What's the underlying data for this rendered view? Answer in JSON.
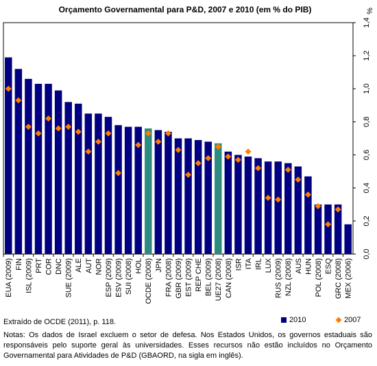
{
  "chart_data": {
    "type": "bar",
    "title": "Orçamento Governamental para P&D, 2007 e 2010 (em % do PIB)",
    "y_label": "%",
    "categories": [
      "EUA (2009)",
      "FIN",
      "ISL (2009)",
      "PRT",
      "COR",
      "DNC",
      "SUE (2009)",
      "ALE",
      "AUT",
      "NOR",
      "ESP (2009)",
      "ESV (2009)",
      "SUI (2008)",
      "HOL",
      "OCDE (2008)",
      "JPN",
      "FRA (2008)",
      "GBR (2009)",
      "EST (2009)",
      "REP CHE",
      "BEL (2009)",
      "UE27 (2008)",
      "CAN (2008)",
      "ISR",
      "ITA",
      "IRL",
      "LUX",
      "RUS (2009)",
      "NZL (2008)",
      "AUS",
      "HUN",
      "POL (2008)",
      "ESQ",
      "GRC (2008)",
      "MEX (2006)"
    ],
    "series": [
      {
        "name": "2010",
        "type": "bar",
        "color": "#000080",
        "colors": [
          "#000080",
          "#000080",
          "#000080",
          "#000080",
          "#000080",
          "#000080",
          "#000080",
          "#000080",
          "#000080",
          "#000080",
          "#000080",
          "#000080",
          "#000080",
          "#000080",
          "#2e8b80",
          "#000080",
          "#000080",
          "#000080",
          "#000080",
          "#000080",
          "#000080",
          "#2e8b80",
          "#000080",
          "#000080",
          "#000080",
          "#000080",
          "#000080",
          "#000080",
          "#000080",
          "#000080",
          "#000080",
          "#000080",
          "#000080",
          "#000080",
          "#000080"
        ],
        "values": [
          1.19,
          1.12,
          1.06,
          1.03,
          1.03,
          0.99,
          0.92,
          0.91,
          0.85,
          0.85,
          0.83,
          0.78,
          0.77,
          0.77,
          0.76,
          0.75,
          0.74,
          0.7,
          0.7,
          0.69,
          0.68,
          0.67,
          0.62,
          0.6,
          0.59,
          0.58,
          0.56,
          0.56,
          0.55,
          0.53,
          0.47,
          0.3,
          0.3,
          0.3,
          0.18
        ]
      },
      {
        "name": "2007",
        "type": "diamond",
        "color": "#ff7f00",
        "values": [
          1.0,
          0.93,
          0.77,
          0.73,
          0.82,
          0.76,
          0.77,
          0.74,
          0.62,
          0.68,
          0.73,
          0.49,
          null,
          0.66,
          0.73,
          0.68,
          0.73,
          0.63,
          0.48,
          0.55,
          0.58,
          0.65,
          0.59,
          0.57,
          0.62,
          0.52,
          0.34,
          0.33,
          0.51,
          0.45,
          0.36,
          0.29,
          0.18,
          0.27,
          null
        ]
      }
    ],
    "ylim": [
      0,
      1.4
    ],
    "yticks": [
      {
        "value": 0,
        "label": "0,0"
      },
      {
        "value": 0.2,
        "label": "0,2"
      },
      {
        "value": 0.4,
        "label": "0,4"
      },
      {
        "value": 0.6,
        "label": "0,6"
      },
      {
        "value": 0.8,
        "label": "0,8"
      },
      {
        "value": 1.0,
        "label": "1,0"
      },
      {
        "value": 1.2,
        "label": "1,2"
      },
      {
        "value": 1.4,
        "label": "1,4"
      }
    ],
    "grid": false,
    "legend": "bottom-right",
    "source": "Extraído de OCDE (2011), p. 118.",
    "notes": "Notas: Os dados de Israel excluem o setor de defesa. Nos Estados Unidos, os governos estaduais são responsáveis pelo suporte geral às universidades. Esses recursos não estão incluídos no Orçamento Governamental para Atividades de P&D (GBAORD, na sigla em inglês)."
  }
}
